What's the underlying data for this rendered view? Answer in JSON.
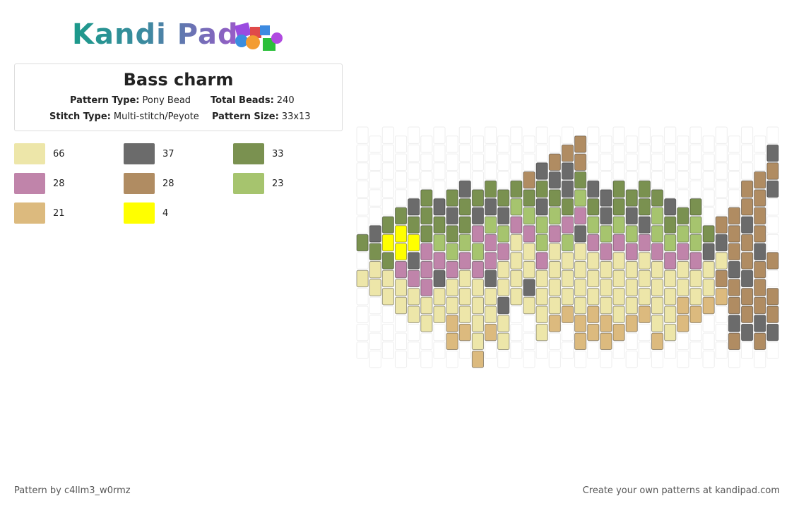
{
  "header": {
    "logo": "Kandi Pad",
    "title": "Bass charm",
    "pattern_type_label": "Pattern Type:",
    "pattern_type": "Pony Bead",
    "total_beads_label": "Total Beads:",
    "total_beads": "240",
    "stitch_type_label": "Stitch Type:",
    "stitch_type": "Multi-stitch/Peyote",
    "pattern_size_label": "Pattern Size:",
    "pattern_size": "33x13"
  },
  "legend": [
    {
      "color": "#ede6a9",
      "count": 66
    },
    {
      "color": "#6b6b6b",
      "count": 37
    },
    {
      "color": "#7a9150",
      "count": 33
    },
    {
      "color": "#c084aa",
      "count": 28
    },
    {
      "color": "#b08c62",
      "count": 28
    },
    {
      "color": "#a6c46e",
      "count": 23
    },
    {
      "color": "#dcba7e",
      "count": 21
    },
    {
      "color": "#ffff00",
      "count": 4
    }
  ],
  "footer": {
    "author": "Pattern by c4llm3_w0rmz",
    "cta": "Create your own patterns at kandipad.com"
  }
}
